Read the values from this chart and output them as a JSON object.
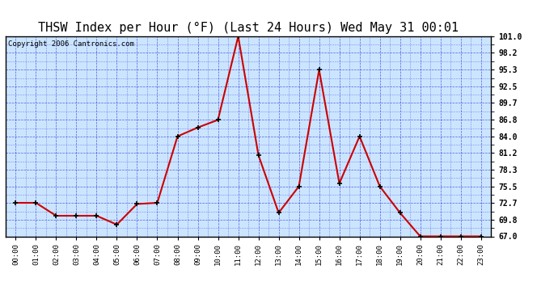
{
  "title": "THSW Index per Hour (°F) (Last 24 Hours) Wed May 31 00:01",
  "copyright": "Copyright 2006 Cantronics.com",
  "hours": [
    0,
    1,
    2,
    3,
    4,
    5,
    6,
    7,
    8,
    9,
    10,
    11,
    12,
    13,
    14,
    15,
    16,
    17,
    18,
    19,
    20,
    21,
    22,
    23
  ],
  "hour_labels": [
    "00:00",
    "01:00",
    "02:00",
    "03:00",
    "04:00",
    "05:00",
    "06:00",
    "07:00",
    "08:00",
    "09:00",
    "10:00",
    "11:00",
    "12:00",
    "13:00",
    "14:00",
    "15:00",
    "16:00",
    "17:00",
    "18:00",
    "19:00",
    "20:00",
    "21:00",
    "22:00",
    "23:00"
  ],
  "values": [
    72.7,
    72.7,
    70.5,
    70.5,
    70.5,
    69.0,
    72.5,
    72.7,
    84.0,
    85.5,
    86.8,
    101.0,
    80.8,
    71.0,
    75.5,
    95.3,
    76.0,
    84.0,
    75.5,
    71.0,
    67.0,
    67.0,
    67.0,
    67.0
  ],
  "yticks": [
    67.0,
    69.8,
    72.7,
    75.5,
    78.3,
    81.2,
    84.0,
    86.8,
    89.7,
    92.5,
    95.3,
    98.2,
    101.0
  ],
  "ylim": [
    67.0,
    101.0
  ],
  "line_color": "#cc0000",
  "marker_color": "#000000",
  "plot_bg": "#cce5ff",
  "grid_color": "#0000cc",
  "title_fontsize": 11,
  "copyright_fontsize": 6.5
}
